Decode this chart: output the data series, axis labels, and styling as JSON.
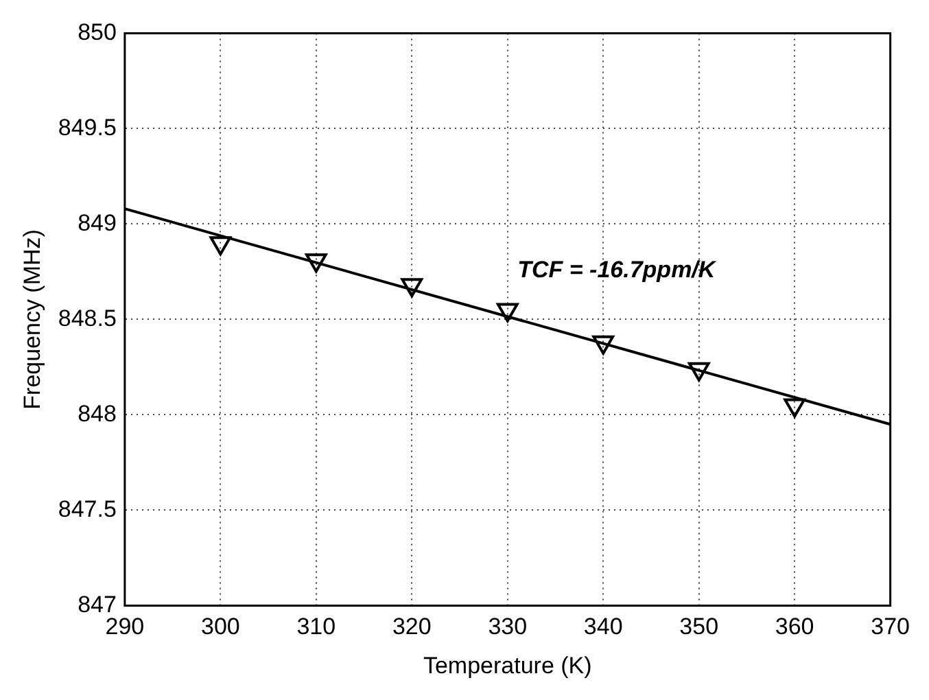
{
  "chart_data": {
    "type": "scatter",
    "xlabel": "Temperature (K)",
    "ylabel": "Frequency (MHz)",
    "xlim": [
      290,
      370
    ],
    "xticks": [
      290,
      300,
      310,
      320,
      330,
      340,
      350,
      360,
      370
    ],
    "ylim": [
      847,
      850
    ],
    "yticks": [
      847,
      {
        "value": 847.5,
        "label": "847.5"
      },
      848,
      {
        "value": 848.5,
        "label": "848.5"
      },
      849,
      {
        "value": 849.5,
        "label": "849.5"
      },
      850
    ],
    "grid": true,
    "series": [
      {
        "marker": "triangle",
        "color": "#000000",
        "x": [
          300,
          310,
          320,
          330,
          340,
          350,
          360
        ],
        "values": [
          848.9,
          848.81,
          848.68,
          848.55,
          848.38,
          848.24,
          848.05
        ]
      },
      {
        "type": "line",
        "color": "#000000",
        "x": [
          290,
          370
        ],
        "values": [
          849.08,
          847.95
        ]
      }
    ],
    "annotations": [
      "TCF = -16.7ppm/K"
    ]
  }
}
